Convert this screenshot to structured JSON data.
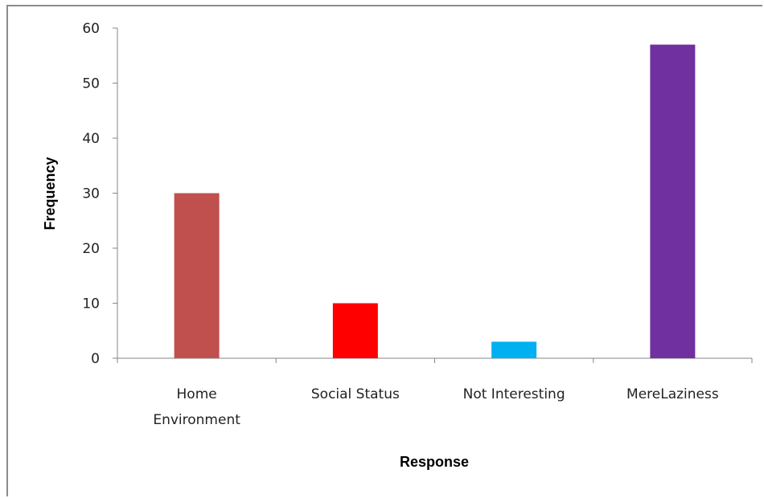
{
  "chart_data": {
    "type": "bar",
    "title": "",
    "xlabel": "Response",
    "ylabel": "Frequency",
    "ylim": [
      0,
      60
    ],
    "yticks": [
      0,
      10,
      20,
      30,
      40,
      50,
      60
    ],
    "grid": false,
    "legend": "none",
    "categories": [
      [
        "Home",
        "Environment"
      ],
      [
        "Social Status"
      ],
      [
        "Not Interesting"
      ],
      [
        "MereLaziness"
      ]
    ],
    "values": [
      30,
      10,
      3,
      57
    ],
    "colors": [
      "#c0504d",
      "#ff0000",
      "#00b0f0",
      "#7030a0"
    ]
  }
}
